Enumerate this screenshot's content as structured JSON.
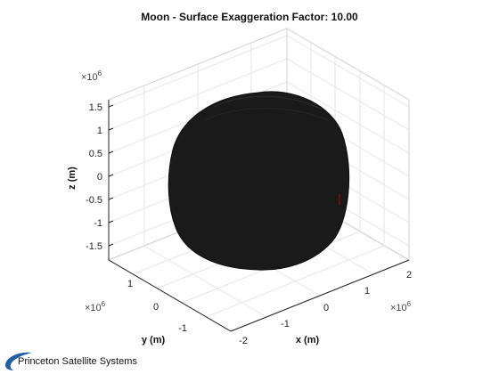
{
  "chart_data": {
    "type": "surface3d",
    "title": "Moon - Surface Exaggeration Factor: 10.00",
    "xlabel": "x (m)",
    "ylabel": "y (m)",
    "zlabel": "z (m)",
    "x_multiplier": "×10",
    "y_multiplier": "×10",
    "z_multiplier": "×10",
    "multiplier_exponent": "6",
    "x_ticks": [
      "-2",
      "-1",
      "0",
      "1",
      "2"
    ],
    "y_ticks": [
      "1",
      "0",
      "-1"
    ],
    "z_ticks": [
      "1.5",
      "1",
      "0.5",
      "0",
      "-0.5",
      "-1",
      "-1.5"
    ],
    "grid": true,
    "surface_color": "#1a1a1a",
    "marker_color": "#cc0000"
  },
  "footer": {
    "logo_text": "Princeton Satellite Systems",
    "logo_color": "#1f5fa8"
  }
}
